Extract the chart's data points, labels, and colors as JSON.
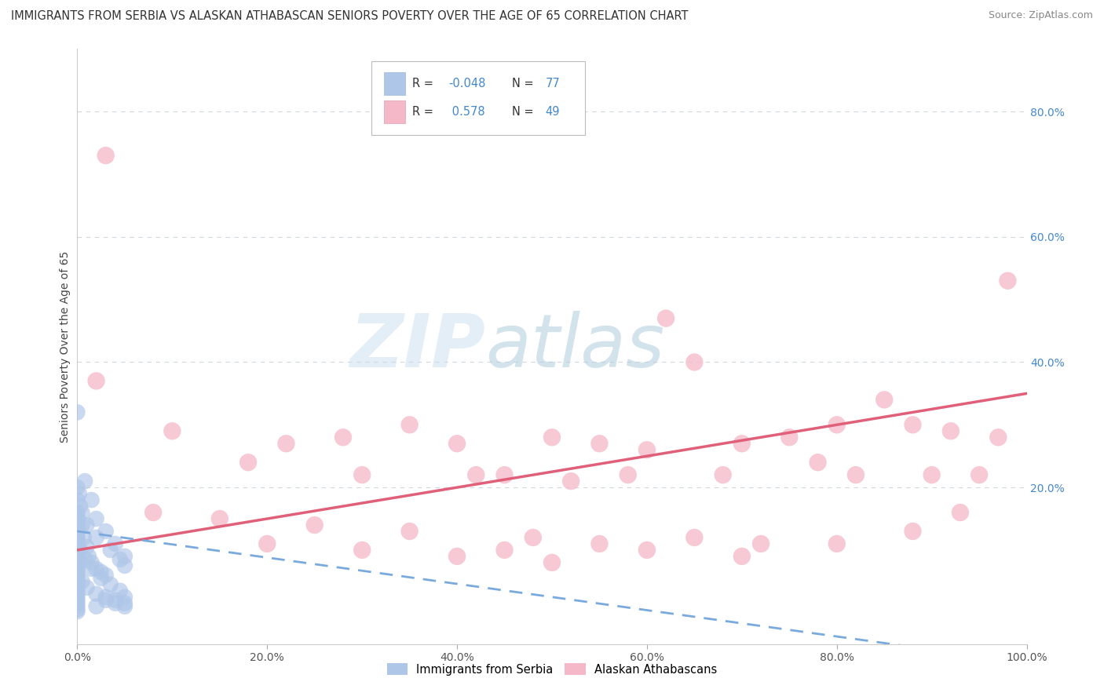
{
  "title": "IMMIGRANTS FROM SERBIA VS ALASKAN ATHABASCAN SENIORS POVERTY OVER THE AGE OF 65 CORRELATION CHART",
  "source": "Source: ZipAtlas.com",
  "ylabel": "Seniors Poverty Over the Age of 65",
  "background_color": "#ffffff",
  "blue_color": "#aec6e8",
  "pink_color": "#f4b8c8",
  "blue_line_color": "#7aaadd",
  "pink_line_color": "#e0607a",
  "watermark_zip": "ZIP",
  "watermark_atlas": "atlas",
  "blue_scatter": [
    [
      0.0,
      32.0
    ],
    [
      0.0,
      20.0
    ],
    [
      0.0,
      18.0
    ],
    [
      0.0,
      16.0
    ],
    [
      0.0,
      15.5
    ],
    [
      0.0,
      15.0
    ],
    [
      0.0,
      14.5
    ],
    [
      0.0,
      14.0
    ],
    [
      0.0,
      13.5
    ],
    [
      0.0,
      13.0
    ],
    [
      0.0,
      12.5
    ],
    [
      0.0,
      12.0
    ],
    [
      0.0,
      11.5
    ],
    [
      0.0,
      11.0
    ],
    [
      0.0,
      10.8
    ],
    [
      0.0,
      10.5
    ],
    [
      0.0,
      10.0
    ],
    [
      0.0,
      9.5
    ],
    [
      0.0,
      9.0
    ],
    [
      0.0,
      8.5
    ],
    [
      0.0,
      8.0
    ],
    [
      0.0,
      7.5
    ],
    [
      0.0,
      7.0
    ],
    [
      0.0,
      6.5
    ],
    [
      0.0,
      6.0
    ],
    [
      0.0,
      5.5
    ],
    [
      0.0,
      5.0
    ],
    [
      0.0,
      4.5
    ],
    [
      0.0,
      4.0
    ],
    [
      0.0,
      3.5
    ],
    [
      0.0,
      3.0
    ],
    [
      0.0,
      2.5
    ],
    [
      0.0,
      2.0
    ],
    [
      0.0,
      1.5
    ],
    [
      0.0,
      1.0
    ],
    [
      0.0,
      0.5
    ],
    [
      0.0,
      0.2
    ],
    [
      0.2,
      19.0
    ],
    [
      0.3,
      17.0
    ],
    [
      0.5,
      14.0
    ],
    [
      0.7,
      12.0
    ],
    [
      1.0,
      10.5
    ],
    [
      1.2,
      9.0
    ],
    [
      1.5,
      8.0
    ],
    [
      2.0,
      7.0
    ],
    [
      2.5,
      6.5
    ],
    [
      3.0,
      6.0
    ],
    [
      0.8,
      21.0
    ],
    [
      1.5,
      18.0
    ],
    [
      2.0,
      15.0
    ],
    [
      3.0,
      13.0
    ],
    [
      4.0,
      11.0
    ],
    [
      5.0,
      9.0
    ],
    [
      0.5,
      16.0
    ],
    [
      1.0,
      14.0
    ],
    [
      2.0,
      12.0
    ],
    [
      3.5,
      10.0
    ],
    [
      4.5,
      8.5
    ],
    [
      5.0,
      7.5
    ],
    [
      0.3,
      10.0
    ],
    [
      0.8,
      8.5
    ],
    [
      1.5,
      7.0
    ],
    [
      2.5,
      5.5
    ],
    [
      3.5,
      4.5
    ],
    [
      4.5,
      3.5
    ],
    [
      5.0,
      2.5
    ],
    [
      3.0,
      2.0
    ],
    [
      4.0,
      1.5
    ],
    [
      5.0,
      1.0
    ],
    [
      0.5,
      5.0
    ],
    [
      1.0,
      4.0
    ],
    [
      2.0,
      3.0
    ],
    [
      3.0,
      2.5
    ],
    [
      4.0,
      2.0
    ],
    [
      5.0,
      1.5
    ],
    [
      2.0,
      1.0
    ]
  ],
  "pink_scatter": [
    [
      2.0,
      37.0
    ],
    [
      62.0,
      47.0
    ],
    [
      98.0,
      53.0
    ],
    [
      3.0,
      73.0
    ],
    [
      65.0,
      40.0
    ],
    [
      28.0,
      28.0
    ],
    [
      35.0,
      30.0
    ],
    [
      50.0,
      28.0
    ],
    [
      55.0,
      27.0
    ],
    [
      75.0,
      28.0
    ],
    [
      80.0,
      30.0
    ],
    [
      88.0,
      30.0
    ],
    [
      92.0,
      29.0
    ],
    [
      97.0,
      28.0
    ],
    [
      70.0,
      27.0
    ],
    [
      85.0,
      34.0
    ],
    [
      10.0,
      29.0
    ],
    [
      18.0,
      24.0
    ],
    [
      40.0,
      27.0
    ],
    [
      45.0,
      22.0
    ],
    [
      60.0,
      26.0
    ],
    [
      78.0,
      24.0
    ],
    [
      90.0,
      22.0
    ],
    [
      95.0,
      22.0
    ],
    [
      22.0,
      27.0
    ],
    [
      30.0,
      22.0
    ],
    [
      42.0,
      22.0
    ],
    [
      52.0,
      21.0
    ],
    [
      58.0,
      22.0
    ],
    [
      68.0,
      22.0
    ],
    [
      82.0,
      22.0
    ],
    [
      8.0,
      16.0
    ],
    [
      15.0,
      15.0
    ],
    [
      25.0,
      14.0
    ],
    [
      35.0,
      13.0
    ],
    [
      48.0,
      12.0
    ],
    [
      55.0,
      11.0
    ],
    [
      65.0,
      12.0
    ],
    [
      72.0,
      11.0
    ],
    [
      80.0,
      11.0
    ],
    [
      88.0,
      13.0
    ],
    [
      93.0,
      16.0
    ],
    [
      20.0,
      11.0
    ],
    [
      30.0,
      10.0
    ],
    [
      40.0,
      9.0
    ],
    [
      50.0,
      8.0
    ],
    [
      60.0,
      10.0
    ],
    [
      70.0,
      9.0
    ],
    [
      45.0,
      10.0
    ]
  ],
  "xlim": [
    0.0,
    100.0
  ],
  "ylim": [
    -5.0,
    90.0
  ],
  "xticks": [
    0.0,
    20.0,
    40.0,
    60.0,
    80.0,
    100.0
  ],
  "xticklabels": [
    "0.0%",
    "20.0%",
    "40.0%",
    "60.0%",
    "80.0%",
    "100.0%"
  ],
  "ytick_right_positions": [
    20.0,
    40.0,
    60.0,
    80.0
  ],
  "yticklabels_right": [
    "20.0%",
    "40.0%",
    "60.0%",
    "80.0%"
  ],
  "grid_color": "#d0d8e0",
  "title_fontsize": 10.5,
  "axis_fontsize": 10,
  "tick_fontsize": 10,
  "right_tick_color": "#4488cc"
}
